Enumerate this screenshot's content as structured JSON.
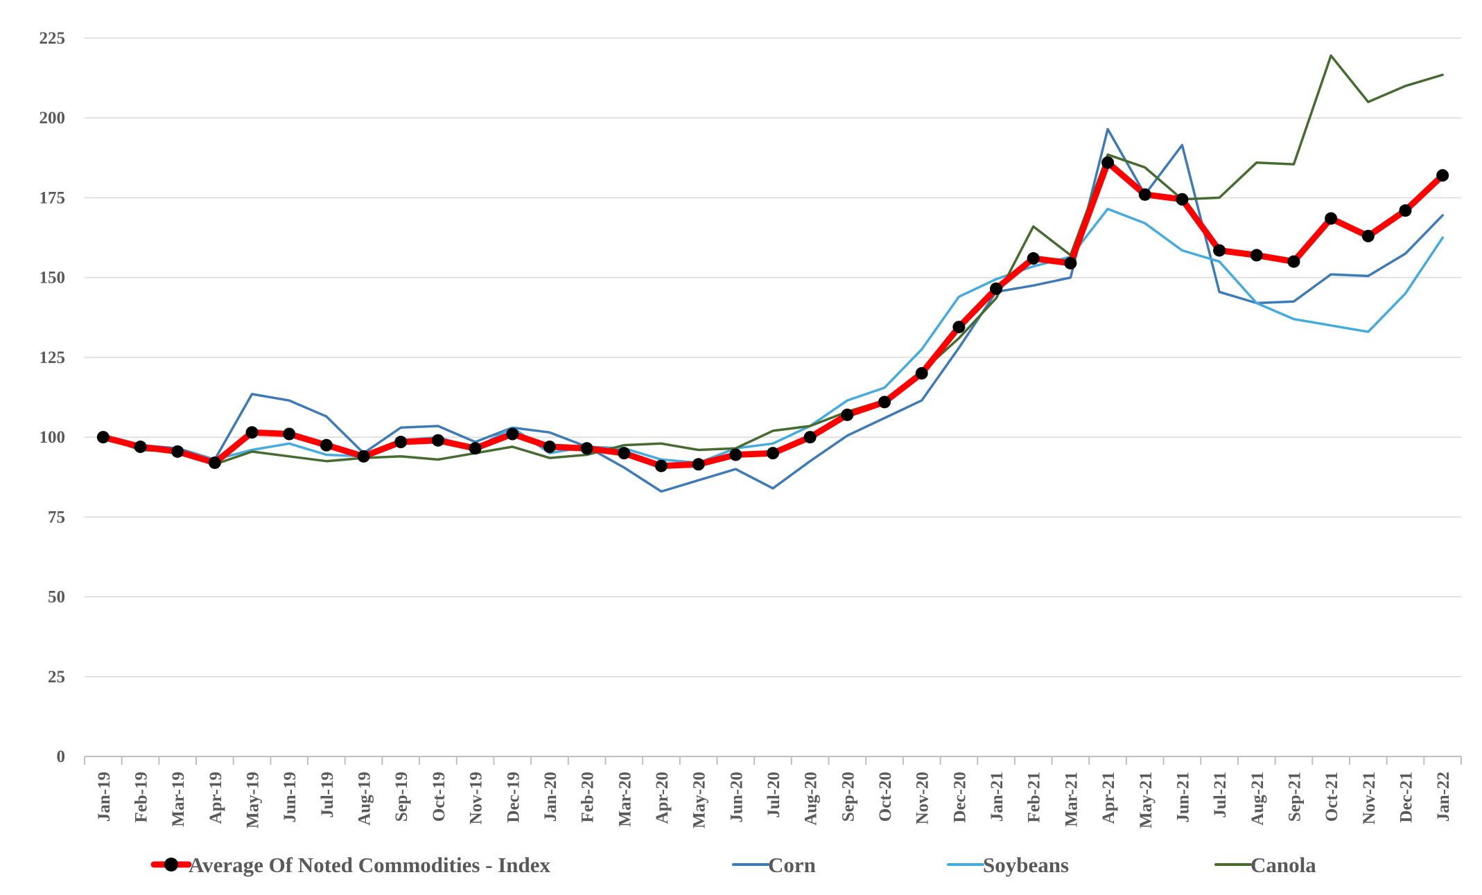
{
  "chart_data": {
    "type": "line",
    "title": "",
    "xlabel": "",
    "ylabel": "",
    "ylim": [
      0,
      225
    ],
    "y_ticks": [
      0,
      25,
      50,
      75,
      100,
      125,
      150,
      175,
      200,
      225
    ],
    "y_tick_labels": [
      "0",
      "25",
      "50",
      "75",
      "100",
      "125",
      "150",
      "175",
      "200",
      "225"
    ],
    "grid": true,
    "legend_position": "bottom",
    "categories": [
      "Jan-19",
      "Feb-19",
      "Mar-19",
      "Apr-19",
      "May-19",
      "Jun-19",
      "Jul-19",
      "Aug-19",
      "Sep-19",
      "Oct-19",
      "Nov-19",
      "Dec-19",
      "Jan-20",
      "Feb-20",
      "Mar-20",
      "Apr-20",
      "May-20",
      "Jun-20",
      "Jul-20",
      "Aug-20",
      "Sep-20",
      "Oct-20",
      "Nov-20",
      "Dec-20",
      "Jan-21",
      "Feb-21",
      "Mar-21",
      "Apr-21",
      "May-21",
      "Jun-21",
      "Jul-21",
      "Aug-21",
      "Sep-21",
      "Oct-21",
      "Nov-21",
      "Dec-21",
      "Jan-22"
    ],
    "series": [
      {
        "name": "Corn",
        "color": "#3d7ab8",
        "values": [
          100,
          97.5,
          96.5,
          93,
          113.5,
          111.5,
          106.5,
          95,
          103,
          103.5,
          98.5,
          103,
          101.5,
          97,
          90.5,
          83,
          86.5,
          90,
          84,
          92.5,
          100.5,
          106,
          111.5,
          128,
          145.5,
          147.5,
          150,
          196.5,
          176,
          191.5,
          145.5,
          142,
          142.5,
          151,
          150.5,
          157.5,
          169.5
        ]
      },
      {
        "name": "Soybeans",
        "color": "#43abe0",
        "values": [
          100,
          97.5,
          96,
          93,
          96,
          98,
          94.5,
          94,
          99,
          100,
          96.5,
          103,
          95,
          97,
          96.5,
          93,
          92,
          96.5,
          98,
          103.5,
          111.5,
          115.5,
          127.5,
          144,
          149.5,
          153.5,
          156.5,
          171.5,
          167,
          158.5,
          155,
          142,
          137,
          135,
          133,
          145,
          162.5
        ]
      },
      {
        "name": "Canola",
        "color": "#456b2f",
        "values": [
          100,
          96,
          95.5,
          91.5,
          95.5,
          94,
          92.5,
          93.5,
          94,
          93,
          95,
          97,
          93.5,
          94.5,
          97.5,
          98,
          96,
          96.5,
          102,
          103.5,
          108,
          111.5,
          120.5,
          131,
          143.5,
          166,
          157,
          188.5,
          184.5,
          174.5,
          175,
          186,
          185.5,
          219.5,
          205,
          210,
          213.5
        ]
      },
      {
        "name": "Average Of Noted Commodities - Index",
        "color": "#ff0000",
        "marker_color": "#000000",
        "values": [
          100,
          97,
          95.5,
          92,
          101.5,
          101,
          97.5,
          94,
          98.5,
          99,
          96.5,
          101,
          97,
          96.5,
          95,
          91,
          91.5,
          94.5,
          95,
          100,
          107,
          111,
          120,
          134.5,
          146.5,
          156,
          154.5,
          186,
          176,
          174.5,
          158.5,
          157,
          155,
          168.5,
          163,
          171,
          182
        ]
      }
    ],
    "legend": [
      {
        "name": "Average Of Noted Commodities - Index",
        "color": "#ff0000",
        "marker": true
      },
      {
        "name": "Corn",
        "color": "#3d7ab8",
        "marker": false
      },
      {
        "name": "Soybeans",
        "color": "#43abe0",
        "marker": false
      },
      {
        "name": "Canola",
        "color": "#456b2f",
        "marker": false
      }
    ]
  }
}
